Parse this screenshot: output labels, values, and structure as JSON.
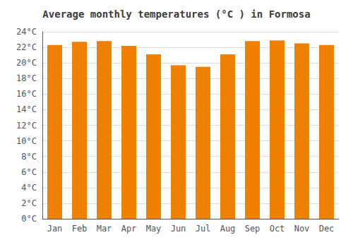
{
  "chart_data": {
    "type": "bar",
    "title": "Average monthly temperatures (°C ) in Formosa",
    "categories": [
      "Jan",
      "Feb",
      "Mar",
      "Apr",
      "May",
      "Jun",
      "Jul",
      "Aug",
      "Sep",
      "Oct",
      "Nov",
      "Dec"
    ],
    "values": [
      22.3,
      22.7,
      22.8,
      22.2,
      21.1,
      19.7,
      19.5,
      21.1,
      22.8,
      22.9,
      22.5,
      22.3
    ],
    "color": "#F08000",
    "ylim": [
      0,
      24
    ],
    "yticks": [
      {
        "value": 0,
        "label": "0°C"
      },
      {
        "value": 2,
        "label": "2°C"
      },
      {
        "value": 4,
        "label": "4°C"
      },
      {
        "value": 6,
        "label": "6°C"
      },
      {
        "value": 8,
        "label": "8°C"
      },
      {
        "value": 10,
        "label": "10°C"
      },
      {
        "value": 12,
        "label": "12°C"
      },
      {
        "value": 14,
        "label": "14°C"
      },
      {
        "value": 16,
        "label": "16°C"
      },
      {
        "value": 18,
        "label": "18°C"
      },
      {
        "value": 20,
        "label": "20°C"
      },
      {
        "value": 22,
        "label": "22°C"
      },
      {
        "value": 24,
        "label": "24°C"
      }
    ],
    "grid": true
  }
}
